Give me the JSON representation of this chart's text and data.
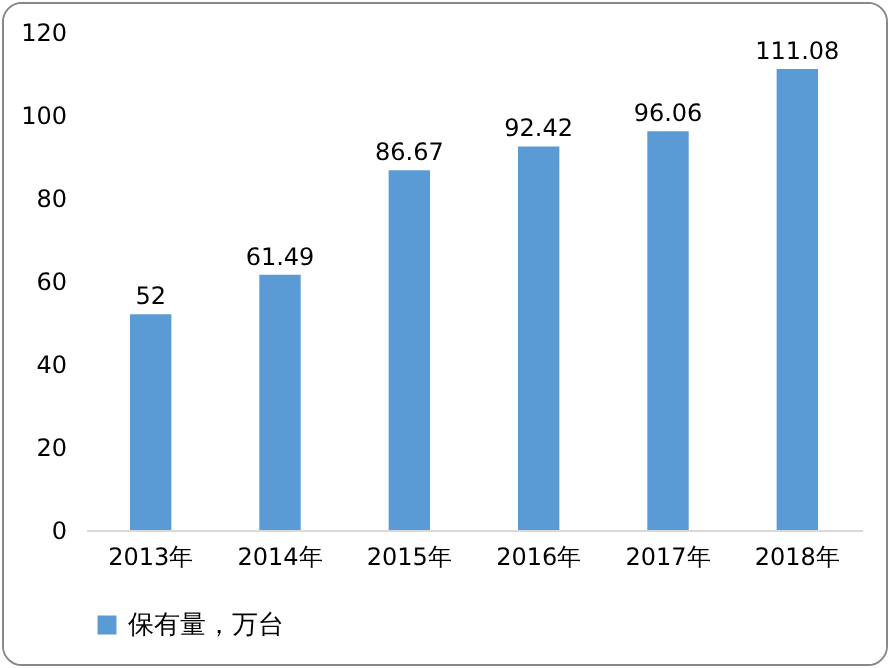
{
  "chart_data": {
    "type": "bar",
    "categories": [
      "2013年",
      "2014年",
      "2015年",
      "2016年",
      "2017年",
      "2018年"
    ],
    "series": [
      {
        "name": "保有量，万台",
        "color": "#5b9bd5",
        "values": [
          52,
          61.49,
          86.67,
          92.42,
          96.06,
          111.08
        ]
      }
    ],
    "ylim": [
      0,
      120
    ],
    "yticks": [
      0,
      20,
      40,
      60,
      80,
      100,
      120
    ],
    "grid": false,
    "legend": "bottom",
    "data_labels": true
  }
}
